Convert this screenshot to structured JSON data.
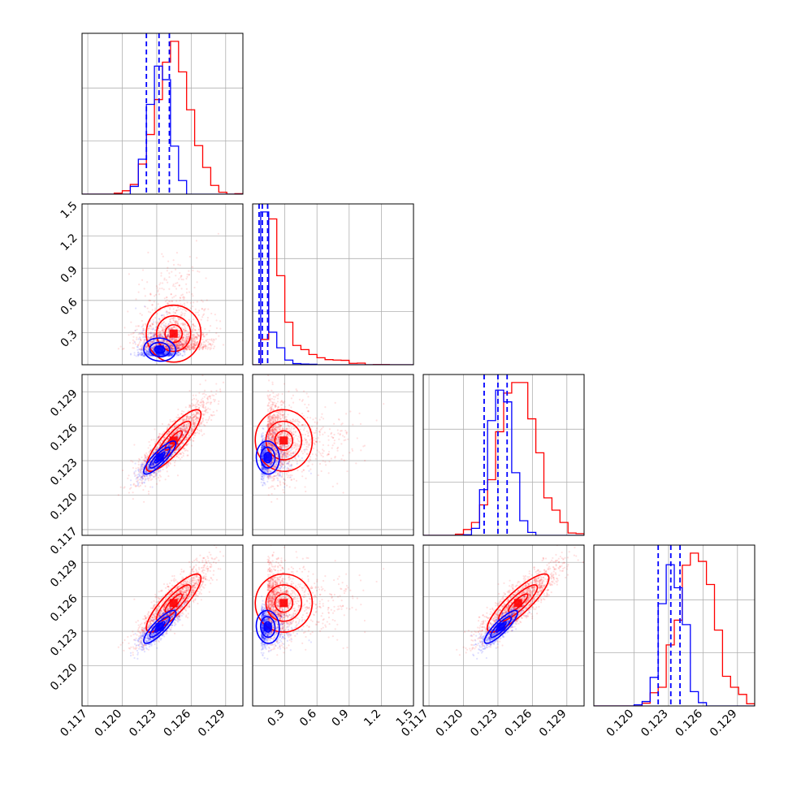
{
  "colors": {
    "red": "#ff0000",
    "blue": "#0000ff",
    "grid": "#b0b0b0"
  },
  "chart_data": {
    "type": "scatter",
    "subtype": "corner-plot",
    "grid": true,
    "parameters": [
      {
        "lim": [
          0.1165,
          0.1305
        ],
        "ticks": [
          "0.117",
          "0.120",
          "0.123",
          "0.126",
          "0.129"
        ]
      },
      {
        "lim": [
          0.0,
          1.5
        ],
        "ticks": [
          "0.3",
          "0.6",
          "0.9",
          "1.2",
          "1.5"
        ]
      },
      {
        "lim": [
          0.1165,
          0.1305
        ],
        "ticks": [
          "0.117",
          "0.120",
          "0.123",
          "0.126",
          "0.129"
        ]
      },
      {
        "lim": [
          0.1165,
          0.1305
        ],
        "ticks": [
          "0.120",
          "0.123",
          "0.126",
          "0.129"
        ]
      }
    ],
    "series": [
      {
        "color": "#ff0000",
        "marginals": [
          {
            "center": 0.1245,
            "sd": 0.0015
          },
          {
            "center": 0.14,
            "sd": 0.1
          },
          {
            "center": 0.1248,
            "sd": 0.0017
          },
          {
            "center": 0.1255,
            "sd": 0.0016
          }
        ],
        "points": 1600
      },
      {
        "color": "#0000ff",
        "marginals": [
          {
            "center": 0.1232,
            "sd": 0.0009
          },
          {
            "center": 0.08,
            "sd": 0.04
          },
          {
            "center": 0.1232,
            "sd": 0.0009
          },
          {
            "center": 0.1233,
            "sd": 0.0009
          }
        ],
        "points": 900
      }
    ],
    "quantile_lines": {
      "color": "#0000ff",
      "style": "dashed",
      "values": [
        [
          0.1221,
          0.1232,
          0.1241
        ],
        [
          0.06,
          0.09,
          0.14
        ],
        [
          0.1218,
          0.123,
          0.1238
        ],
        [
          0.1221,
          0.1232,
          0.124
        ]
      ]
    }
  }
}
